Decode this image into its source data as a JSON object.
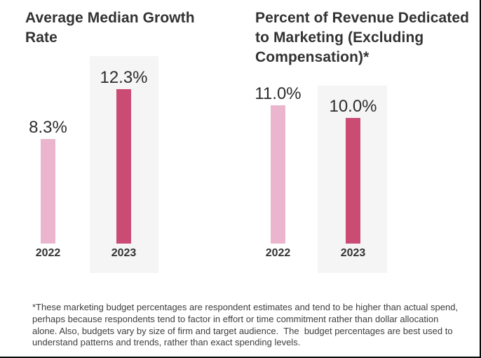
{
  "colors": {
    "bar_2022": "#ebb6cd",
    "bar_2023": "#ca4b74",
    "panel": "#f5f5f5",
    "title_text": "#323232",
    "value_text": "#2d2d2d",
    "border": "#0b0b0b"
  },
  "charts": [
    {
      "title_lines": [
        "Average Median Growth",
        "Rate"
      ],
      "bars": [
        {
          "year": "2022",
          "value_label": "8.3%"
        },
        {
          "year": "2023",
          "value_label": "12.3%"
        }
      ]
    },
    {
      "title_lines": [
        "Percent of Revenue Dedicated",
        "to Marketing (Excluding",
        "Compensation)*"
      ],
      "bars": [
        {
          "year": "2022",
          "value_label": "11.0%"
        },
        {
          "year": "2023",
          "value_label": "10.0%"
        }
      ]
    }
  ],
  "chart_data": [
    {
      "type": "bar",
      "title": "Average Median Growth Rate",
      "categories": [
        "2022",
        "2023"
      ],
      "values": [
        8.3,
        12.3
      ],
      "data_labels": [
        "8.3%",
        "12.3%"
      ],
      "unit": "%",
      "bar_colors": [
        "#ebb6cd",
        "#ca4b74"
      ],
      "highlight_category": "2023",
      "ylim": [
        0,
        14
      ],
      "axes_visible": false,
      "grid": false,
      "legend": "none"
    },
    {
      "type": "bar",
      "title": "Percent of Revenue Dedicated to Marketing (Excluding Compensation)*",
      "categories": [
        "2022",
        "2023"
      ],
      "values": [
        11.0,
        10.0
      ],
      "data_labels": [
        "11.0%",
        "10.0%"
      ],
      "unit": "%",
      "bar_colors": [
        "#ebb6cd",
        "#ca4b74"
      ],
      "highlight_category": "2023",
      "ylim": [
        0,
        14
      ],
      "axes_visible": false,
      "grid": false,
      "legend": "none"
    }
  ],
  "footnote_lines": [
    "*These marketing budget percentages are respondent estimates and tend to be higher than actual spend,",
    "perhaps because respondents tend to factor in effort or time commitment rather than dollar allocation",
    "alone. Also, budgets vary by size of firm and target audience.  The  budget percentages are best used to",
    "understand patterns and trends, rather than exact spending levels."
  ]
}
